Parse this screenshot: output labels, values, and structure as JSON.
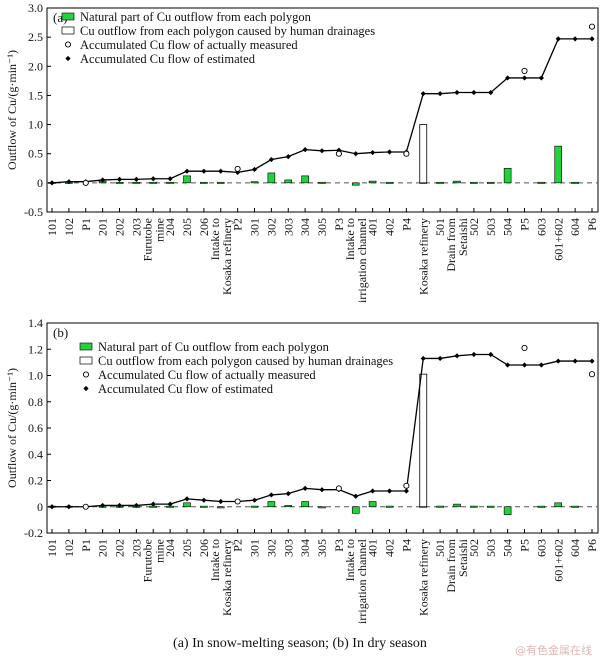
{
  "chart_data": [
    {
      "type": "bar",
      "panel_label": "(a)",
      "ylabel": "Outflow of Cu/(g·min⁻¹)",
      "ylim": [
        -0.5,
        3.0
      ],
      "yticks": [
        -0.5,
        0,
        0.5,
        1.0,
        1.5,
        2.0,
        2.5,
        3.0
      ],
      "ytick_labels": [
        "-0.5",
        "0",
        "0.5",
        "1.0",
        "1.5",
        "2.0",
        "2.5",
        "3.0"
      ],
      "legend_position": "top-left",
      "legend": [
        {
          "key": "natural",
          "label": "Natural part of Cu outflow from each polygon",
          "marker": "green-bar"
        },
        {
          "key": "human",
          "label": "Cu outflow from each polygon caused by human drainages",
          "marker": "open-bar"
        },
        {
          "key": "measured",
          "label": "Accumulated Cu flow of actually measured",
          "marker": "open-circle"
        },
        {
          "key": "estimated",
          "label": "Accumulated Cu flow of estimated",
          "marker": "filled-diamond"
        }
      ],
      "categories": [
        "101",
        "102",
        "P1",
        "201",
        "202",
        "203",
        "Furutobe mine",
        "204",
        "205",
        "206",
        "Intake to Kosaka refinery",
        "P2",
        "301",
        "302",
        "303",
        "304",
        "305",
        "P3",
        "Intake to irrigation channel",
        "401",
        "402",
        "P4",
        "Kosaka refinery",
        "501",
        "Drain from Setaishi",
        "502",
        "503",
        "504",
        "P5",
        "603",
        "601+602",
        "604",
        "P6"
      ],
      "series": [
        {
          "name": "Natural part of Cu outflow from each polygon",
          "values": [
            0,
            0,
            null,
            0.03,
            0.01,
            0,
            0,
            0,
            0.12,
            0,
            0,
            null,
            0.02,
            0.17,
            0.05,
            0.12,
            0,
            null,
            -0.04,
            0.03,
            0.01,
            null,
            0,
            0,
            0.03,
            0,
            0,
            0.25,
            null,
            0,
            0.63,
            0,
            null
          ]
        },
        {
          "name": "Cu outflow from each polygon caused by human drainages",
          "values": [
            null,
            null,
            null,
            null,
            null,
            null,
            null,
            null,
            null,
            null,
            null,
            null,
            null,
            null,
            null,
            null,
            null,
            null,
            null,
            null,
            null,
            null,
            1.0,
            null,
            null,
            null,
            null,
            null,
            null,
            null,
            null,
            null,
            null
          ]
        },
        {
          "name": "Accumulated Cu flow of actually measured",
          "values": [
            null,
            null,
            0.0,
            null,
            null,
            null,
            null,
            null,
            null,
            null,
            null,
            0.24,
            null,
            null,
            null,
            null,
            null,
            0.5,
            null,
            null,
            null,
            0.5,
            null,
            null,
            null,
            null,
            null,
            null,
            1.92,
            null,
            null,
            null,
            2.68
          ]
        },
        {
          "name": "Accumulated Cu flow of estimated",
          "values": [
            0.0,
            0.02,
            0.02,
            0.05,
            0.06,
            0.06,
            0.07,
            0.07,
            0.2,
            0.2,
            0.2,
            0.18,
            0.23,
            0.4,
            0.45,
            0.57,
            0.55,
            0.56,
            0.5,
            0.52,
            0.53,
            0.53,
            1.53,
            1.53,
            1.55,
            1.55,
            1.55,
            1.8,
            1.8,
            1.8,
            2.47,
            2.47,
            2.47
          ]
        }
      ]
    },
    {
      "type": "bar",
      "panel_label": "(b)",
      "ylabel": "Outflow of Cu/(g·min⁻¹)",
      "ylim": [
        -0.2,
        1.4
      ],
      "yticks": [
        -0.2,
        0,
        0.2,
        0.4,
        0.6,
        0.8,
        1.0,
        1.2,
        1.4
      ],
      "ytick_labels": [
        "-0.2",
        "0",
        "0.2",
        "0.4",
        "0.6",
        "0.8",
        "1.0",
        "1.2",
        "1.4"
      ],
      "legend_position": "top-center",
      "legend": [
        {
          "key": "natural",
          "label": "Natural part of Cu outflow from each polygon",
          "marker": "green-bar"
        },
        {
          "key": "human",
          "label": "Cu outflow from each polygon caused by human drainages",
          "marker": "open-bar"
        },
        {
          "key": "measured",
          "label": "Accumulated Cu flow of actually measured",
          "marker": "open-circle"
        },
        {
          "key": "estimated",
          "label": "Accumulated Cu flow of estimated",
          "marker": "filled-diamond"
        }
      ],
      "categories": [
        "101",
        "102",
        "P1",
        "201",
        "202",
        "203",
        "Furutobe mine",
        "204",
        "205",
        "206",
        "Intake to Kosaka refinery",
        "P2",
        "301",
        "302",
        "303",
        "304",
        "305",
        "P3",
        "Intake to irrigation channel",
        "401",
        "402",
        "P4",
        "Kosaka refinery",
        "501",
        "Drain from Setaishi",
        "502",
        "503",
        "504",
        "P5",
        "603",
        "601+602",
        "604",
        "P6"
      ],
      "series": [
        {
          "name": "Natural part of Cu outflow from each polygon",
          "values": [
            0,
            0,
            null,
            0.005,
            0,
            0,
            0,
            0,
            0.03,
            0,
            -0.005,
            null,
            0.005,
            0.04,
            0.01,
            0.04,
            -0.005,
            null,
            -0.05,
            0.04,
            0.005,
            null,
            0,
            0.005,
            0.02,
            0.005,
            0,
            -0.06,
            null,
            0,
            0.03,
            0,
            null
          ]
        },
        {
          "name": "Cu outflow from each polygon caused by human drainages",
          "values": [
            null,
            null,
            null,
            null,
            null,
            null,
            null,
            null,
            null,
            null,
            null,
            null,
            null,
            null,
            null,
            null,
            null,
            null,
            null,
            null,
            null,
            null,
            1.01,
            null,
            null,
            null,
            null,
            null,
            null,
            null,
            null,
            null,
            null
          ]
        },
        {
          "name": "Accumulated Cu flow of actually measured",
          "values": [
            null,
            null,
            0.0,
            null,
            null,
            null,
            null,
            null,
            null,
            null,
            null,
            0.04,
            null,
            null,
            null,
            null,
            null,
            0.14,
            null,
            null,
            null,
            0.16,
            null,
            null,
            null,
            null,
            null,
            null,
            1.21,
            null,
            null,
            null,
            1.01
          ]
        },
        {
          "name": "Accumulated Cu flow of estimated",
          "values": [
            0.0,
            0.0,
            0.0,
            0.01,
            0.01,
            0.01,
            0.02,
            0.02,
            0.06,
            0.05,
            0.04,
            0.04,
            0.05,
            0.09,
            0.1,
            0.14,
            0.13,
            0.13,
            0.08,
            0.12,
            0.12,
            0.12,
            1.13,
            1.13,
            1.15,
            1.16,
            1.16,
            1.08,
            1.08,
            1.08,
            1.11,
            1.11,
            1.11
          ]
        }
      ]
    }
  ],
  "caption": "(a) In snow-melting season; (b) In dry season",
  "watermark": "@有色金属在线",
  "colors": {
    "natural_bar": "#22d33c",
    "axis": "#000000",
    "zero_line": "#555555"
  }
}
